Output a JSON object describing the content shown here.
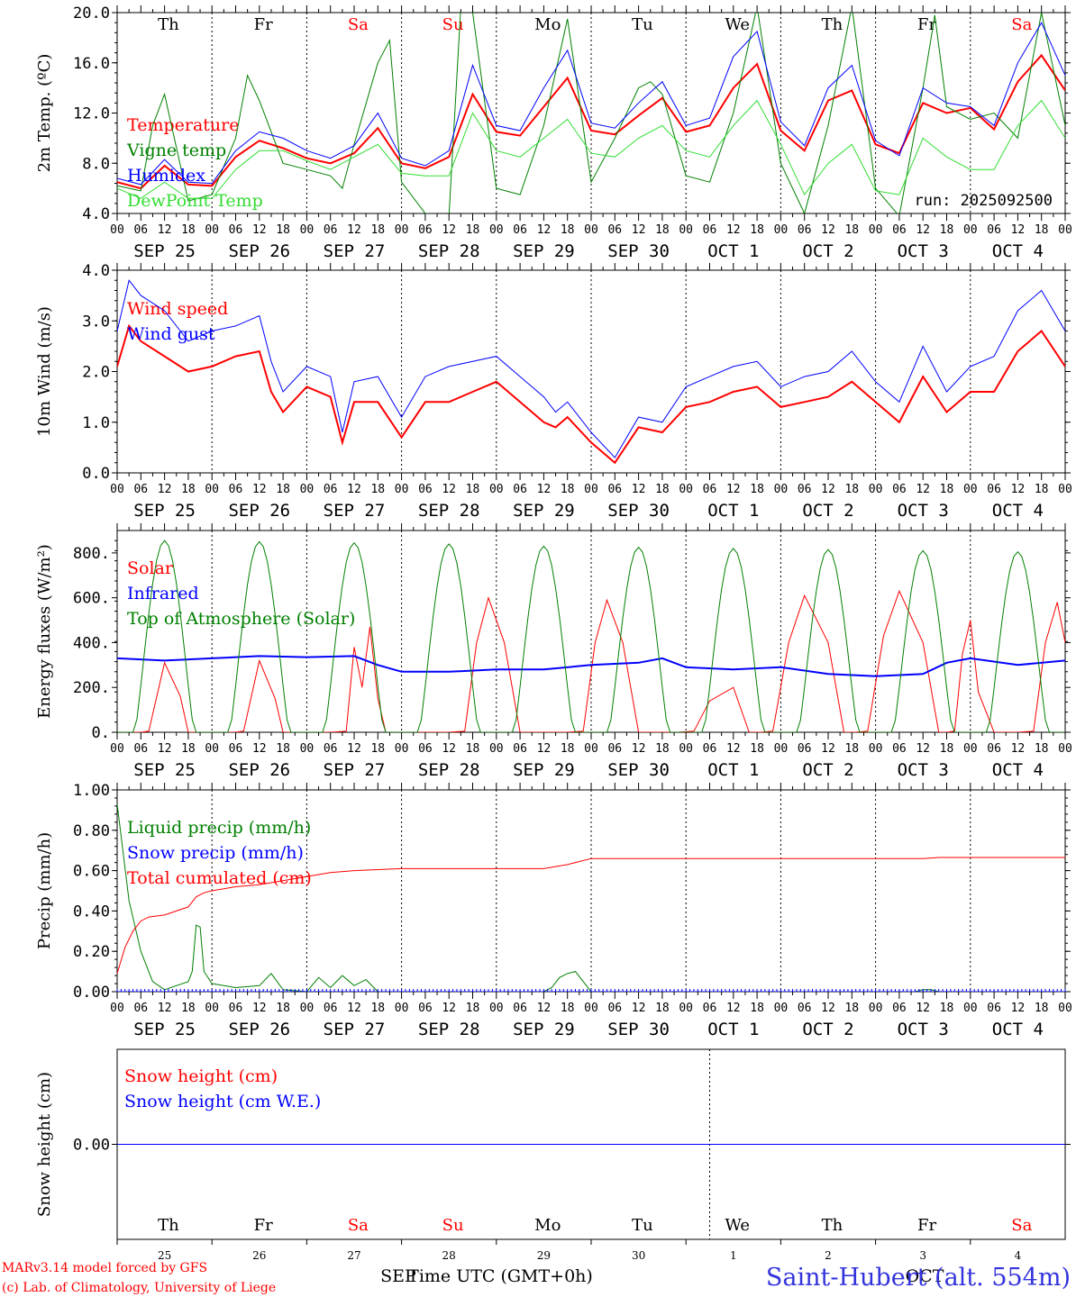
{
  "run_label": "run: 2025092500",
  "xaxis_title": "Time UTC (GMT+0h)",
  "credits": [
    "MARv3.14 model forced by GFS",
    "(c) Lab. of Climatology, University of Liege"
  ],
  "station": "Saint-Hubert (alt. 554m)",
  "colors": {
    "red": "#ff0000",
    "green": "#008000",
    "blue": "#0000ff",
    "lightgreen": "#33dd33",
    "axis": "#000000"
  },
  "hour_ticks": [
    "00",
    "06",
    "12",
    "18"
  ],
  "hour_tick_end": "00",
  "date_labels": [
    "SEP 25",
    "SEP 26",
    "SEP 27",
    "SEP 28",
    "SEP 29",
    "SEP 30",
    "OCT  1",
    "OCT  2",
    "OCT  3",
    "OCT  4"
  ],
  "weekdays": [
    {
      "label": "Th",
      "color": "#000000"
    },
    {
      "label": "Fr",
      "color": "#000000"
    },
    {
      "label": "Sa",
      "color": "#ff0000"
    },
    {
      "label": "Su",
      "color": "#ff0000"
    },
    {
      "label": "Mo",
      "color": "#000000"
    },
    {
      "label": "Tu",
      "color": "#000000"
    },
    {
      "label": "We",
      "color": "#000000"
    },
    {
      "label": "Th",
      "color": "#000000"
    },
    {
      "label": "Fr",
      "color": "#000000"
    },
    {
      "label": "Sa",
      "color": "#ff0000"
    }
  ],
  "bottom_day_numbers": [
    "25",
    "26",
    "27",
    "28",
    "29",
    "30",
    "1",
    "2",
    "3",
    "4"
  ],
  "bottom_month_left": "SEP",
  "bottom_month_right": "OCT",
  "chart_data": [
    {
      "type": "line",
      "ylabel": "2m Temp. (ºC)",
      "ylim": [
        4,
        20
      ],
      "yticks": [
        "4.0",
        "8.0",
        "12.0",
        "16.0",
        "20.0"
      ],
      "xlim_hours": [
        0,
        240
      ],
      "series": [
        {
          "name": "Temperature",
          "color": "#ff0000",
          "width": 2,
          "x": [
            0,
            6,
            12,
            18,
            24,
            30,
            36,
            42,
            48,
            54,
            60,
            66,
            72,
            78,
            84,
            90,
            96,
            102,
            108,
            114,
            120,
            126,
            132,
            138,
            144,
            150,
            156,
            162,
            168,
            174,
            180,
            186,
            192,
            198,
            204,
            210,
            216,
            222,
            228,
            234,
            240
          ],
          "values": [
            6.5,
            6.0,
            7.8,
            6.3,
            6.2,
            8.5,
            9.8,
            9.2,
            8.4,
            8.0,
            8.8,
            10.8,
            8.0,
            7.6,
            8.5,
            13.5,
            10.5,
            10.2,
            12.5,
            14.8,
            10.6,
            10.3,
            11.8,
            13.2,
            10.5,
            11.0,
            14.0,
            15.9,
            10.6,
            9.0,
            13.0,
            13.8,
            9.5,
            8.8,
            12.8,
            12.0,
            12.4,
            10.7,
            14.5,
            16.6,
            13.8
          ]
        },
        {
          "name": "Vigne temp",
          "color": "#008000",
          "width": 1,
          "x": [
            0,
            6,
            9,
            12,
            18,
            24,
            30,
            33,
            36,
            42,
            48,
            54,
            57,
            60,
            66,
            69,
            72,
            78,
            84,
            87,
            90,
            96,
            102,
            108,
            114,
            120,
            126,
            132,
            135,
            138,
            144,
            150,
            156,
            162,
            168,
            174,
            180,
            186,
            192,
            198,
            204,
            207,
            210,
            216,
            222,
            228,
            234,
            240
          ],
          "values": [
            6.2,
            5.8,
            11.0,
            13.5,
            5.0,
            5.5,
            10.0,
            15.0,
            13.0,
            8.0,
            7.5,
            7.0,
            6.0,
            9.5,
            16.0,
            17.8,
            6.5,
            4.0,
            3.8,
            20.5,
            20.0,
            6.0,
            5.5,
            11.0,
            19.5,
            6.5,
            10.0,
            14.0,
            14.5,
            13.5,
            7.0,
            6.5,
            12.0,
            20.5,
            8.0,
            4.0,
            11.0,
            20.5,
            6.0,
            3.8,
            14.0,
            19.8,
            12.5,
            11.5,
            12.0,
            10.0,
            20.0,
            11.0
          ]
        },
        {
          "name": "Humidex",
          "color": "#0000ff",
          "width": 1,
          "x": [
            0,
            6,
            12,
            18,
            24,
            30,
            36,
            42,
            48,
            54,
            60,
            66,
            72,
            78,
            84,
            90,
            96,
            102,
            108,
            114,
            120,
            126,
            132,
            138,
            144,
            150,
            156,
            162,
            168,
            174,
            180,
            186,
            192,
            198,
            204,
            210,
            216,
            222,
            228,
            234,
            240
          ],
          "values": [
            6.8,
            6.3,
            8.3,
            6.5,
            6.4,
            9.0,
            10.5,
            10.0,
            9.0,
            8.4,
            9.4,
            12.0,
            8.4,
            7.8,
            9.0,
            15.8,
            11.0,
            10.6,
            14.0,
            17.0,
            11.2,
            10.8,
            12.8,
            14.5,
            11.0,
            11.6,
            16.5,
            18.5,
            11.3,
            9.4,
            14.0,
            15.8,
            9.8,
            8.6,
            14.0,
            12.8,
            12.5,
            11.0,
            16.0,
            19.2,
            15.0
          ]
        },
        {
          "name": "DewPoint Temp",
          "color": "#33dd33",
          "width": 1,
          "x": [
            0,
            6,
            12,
            18,
            24,
            30,
            36,
            42,
            48,
            54,
            60,
            66,
            72,
            78,
            84,
            90,
            96,
            102,
            108,
            114,
            120,
            126,
            132,
            138,
            144,
            150,
            156,
            162,
            168,
            174,
            180,
            186,
            192,
            198,
            204,
            210,
            216,
            222,
            228,
            234,
            240
          ],
          "values": [
            6.0,
            5.2,
            6.5,
            5.2,
            5.2,
            7.5,
            9.0,
            9.0,
            8.2,
            7.5,
            8.5,
            9.5,
            7.2,
            7.0,
            7.0,
            12.0,
            9.0,
            8.5,
            10.0,
            11.5,
            8.8,
            8.5,
            10.0,
            11.0,
            9.0,
            8.5,
            11.0,
            13.0,
            9.5,
            5.5,
            8.0,
            9.5,
            5.8,
            5.5,
            10.0,
            8.5,
            7.5,
            7.5,
            11.0,
            13.0,
            10.0
          ]
        }
      ]
    },
    {
      "type": "line",
      "ylabel": "10m Wind (m/s)",
      "ylim": [
        0,
        4
      ],
      "yticks": [
        "0.0",
        "1.0",
        "2.0",
        "3.0",
        "4.0"
      ],
      "xlim_hours": [
        0,
        240
      ],
      "series": [
        {
          "name": "Wind speed",
          "color": "#ff0000",
          "width": 2,
          "x": [
            0,
            3,
            6,
            12,
            18,
            24,
            30,
            36,
            39,
            42,
            48,
            54,
            57,
            60,
            66,
            72,
            78,
            84,
            90,
            96,
            102,
            108,
            111,
            114,
            120,
            126,
            132,
            138,
            144,
            150,
            156,
            162,
            168,
            174,
            180,
            186,
            192,
            198,
            204,
            210,
            216,
            222,
            228,
            234,
            240
          ],
          "values": [
            2.1,
            2.9,
            2.6,
            2.3,
            2.0,
            2.1,
            2.3,
            2.4,
            1.6,
            1.2,
            1.7,
            1.5,
            0.6,
            1.4,
            1.4,
            0.7,
            1.4,
            1.4,
            1.6,
            1.8,
            1.4,
            1.0,
            0.9,
            1.1,
            0.6,
            0.2,
            0.9,
            0.8,
            1.3,
            1.4,
            1.6,
            1.7,
            1.3,
            1.4,
            1.5,
            1.8,
            1.4,
            1.0,
            1.9,
            1.2,
            1.6,
            1.6,
            2.4,
            2.8,
            2.1
          ]
        },
        {
          "name": "Wind gust",
          "color": "#0000ff",
          "width": 1,
          "x": [
            0,
            3,
            6,
            12,
            18,
            24,
            30,
            36,
            39,
            42,
            48,
            54,
            57,
            60,
            66,
            72,
            78,
            84,
            90,
            96,
            102,
            108,
            111,
            114,
            120,
            126,
            132,
            138,
            144,
            150,
            156,
            162,
            168,
            174,
            180,
            186,
            192,
            198,
            204,
            210,
            216,
            222,
            228,
            234,
            240
          ],
          "values": [
            2.8,
            3.8,
            3.5,
            3.2,
            2.6,
            2.8,
            2.9,
            3.1,
            2.2,
            1.6,
            2.1,
            1.9,
            0.8,
            1.8,
            1.9,
            1.1,
            1.9,
            2.1,
            2.2,
            2.3,
            1.9,
            1.5,
            1.2,
            1.4,
            0.8,
            0.3,
            1.1,
            1.0,
            1.7,
            1.9,
            2.1,
            2.2,
            1.7,
            1.9,
            2.0,
            2.4,
            1.8,
            1.4,
            2.5,
            1.6,
            2.1,
            2.3,
            3.2,
            3.6,
            2.8
          ]
        }
      ]
    },
    {
      "type": "line",
      "ylabel": "Energy fluxes (W/m²)",
      "ylim": [
        0,
        900
      ],
      "yticks": [
        "0.",
        "200.",
        "400.",
        "600.",
        "800."
      ],
      "xlim_hours": [
        0,
        240
      ],
      "toa_peak": [
        855,
        850,
        845,
        840,
        830,
        825,
        820,
        815,
        810,
        805
      ],
      "series": [
        {
          "name": "Solar",
          "color": "#ff0000",
          "width": 1,
          "x": [
            0,
            6,
            8,
            12,
            16,
            18,
            24,
            30,
            32,
            36,
            40,
            42,
            48,
            54,
            58,
            60,
            62,
            64,
            66,
            68,
            72,
            78,
            84,
            88,
            91,
            94,
            98,
            102,
            108,
            114,
            118,
            121,
            124,
            128,
            132,
            138,
            142,
            146,
            150,
            156,
            160,
            163,
            166,
            170,
            174,
            180,
            184,
            187,
            190,
            194,
            198,
            204,
            208,
            210,
            212,
            214,
            216,
            218,
            222,
            228,
            232,
            235,
            238,
            240
          ],
          "values": [
            0,
            0,
            5,
            310,
            160,
            0,
            0,
            0,
            5,
            320,
            150,
            0,
            0,
            0,
            5,
            380,
            200,
            470,
            150,
            0,
            0,
            0,
            0,
            5,
            400,
            600,
            400,
            0,
            0,
            0,
            5,
            400,
            590,
            400,
            0,
            0,
            0,
            5,
            140,
            200,
            0,
            0,
            5,
            400,
            610,
            400,
            0,
            0,
            5,
            430,
            630,
            400,
            0,
            0,
            5,
            350,
            500,
            180,
            0,
            0,
            5,
            400,
            580,
            400
          ]
        },
        {
          "name": "Infrared",
          "color": "#0000ff",
          "width": 2,
          "x": [
            0,
            12,
            24,
            36,
            48,
            60,
            66,
            72,
            84,
            96,
            108,
            120,
            132,
            138,
            144,
            156,
            168,
            180,
            192,
            204,
            210,
            216,
            228,
            240
          ],
          "values": [
            330,
            320,
            330,
            340,
            335,
            340,
            300,
            270,
            270,
            280,
            280,
            300,
            310,
            330,
            290,
            280,
            290,
            260,
            250,
            260,
            310,
            330,
            300,
            320
          ]
        },
        {
          "name": "Top of Atmosphere (Solar)",
          "color": "#008000",
          "width": 1,
          "x": [],
          "values": []
        }
      ]
    },
    {
      "type": "line",
      "ylabel": "Precip (mm/h)",
      "ylim": [
        0,
        1
      ],
      "yticks": [
        "0.00",
        "0.20",
        "0.40",
        "0.60",
        "0.80",
        "1.00"
      ],
      "xlim_hours": [
        0,
        240
      ],
      "series": [
        {
          "name": "Liquid precip (mm/h)",
          "color": "#008000",
          "width": 1,
          "x": [
            0,
            3,
            6,
            9,
            12,
            15,
            18,
            19,
            20,
            21,
            22,
            24,
            30,
            36,
            39,
            42,
            48,
            51,
            54,
            57,
            60,
            63,
            66,
            69,
            72,
            78,
            84,
            96,
            108,
            110,
            112,
            114,
            116,
            118,
            120,
            132,
            144,
            156,
            168,
            180,
            192,
            202,
            204,
            206,
            208,
            216,
            228,
            240
          ],
          "values": [
            0.93,
            0.45,
            0.2,
            0.05,
            0.01,
            0.03,
            0.05,
            0.1,
            0.33,
            0.32,
            0.1,
            0.04,
            0.02,
            0.03,
            0.09,
            0.01,
            0.0,
            0.07,
            0.02,
            0.08,
            0.03,
            0.06,
            0.0,
            0.0,
            0.0,
            0.0,
            0.0,
            0.0,
            0.0,
            0.02,
            0.07,
            0.09,
            0.1,
            0.05,
            0.0,
            0.0,
            0.0,
            0.0,
            0.0,
            0.0,
            0.0,
            0.0,
            0.01,
            0.01,
            0.0,
            0.0,
            0.0,
            0.0
          ]
        },
        {
          "name": "Snow precip (mm/h)",
          "color": "#0000ff",
          "width": 1,
          "x": [
            0,
            240
          ],
          "values": [
            0.0,
            0.0
          ]
        },
        {
          "name": "Total cumulated (cm)",
          "color": "#ff0000",
          "width": 1,
          "x": [
            0,
            2,
            4,
            6,
            8,
            12,
            18,
            20,
            22,
            24,
            30,
            36,
            42,
            48,
            54,
            60,
            66,
            72,
            78,
            84,
            96,
            108,
            114,
            120,
            132,
            156,
            180,
            204,
            208,
            240
          ],
          "values": [
            0.09,
            0.22,
            0.3,
            0.35,
            0.37,
            0.38,
            0.42,
            0.47,
            0.49,
            0.5,
            0.52,
            0.53,
            0.55,
            0.57,
            0.59,
            0.6,
            0.605,
            0.61,
            0.61,
            0.61,
            0.61,
            0.61,
            0.63,
            0.66,
            0.66,
            0.66,
            0.66,
            0.66,
            0.665,
            0.665
          ]
        }
      ]
    },
    {
      "type": "line",
      "ylabel": "Snow height (cm)",
      "ylim": [
        -1,
        1
      ],
      "yticks": [
        "0.00"
      ],
      "xlim_hours": [
        0,
        240
      ],
      "series": [
        {
          "name": "Snow height (cm)",
          "color": "#ff0000",
          "width": 1,
          "x": [
            0,
            240
          ],
          "values": [
            0.0,
            0.0
          ]
        },
        {
          "name": "Snow height (cm W.E.)",
          "color": "#0000ff",
          "width": 1,
          "x": [
            0,
            240
          ],
          "values": [
            0.0,
            0.0
          ]
        }
      ]
    }
  ]
}
